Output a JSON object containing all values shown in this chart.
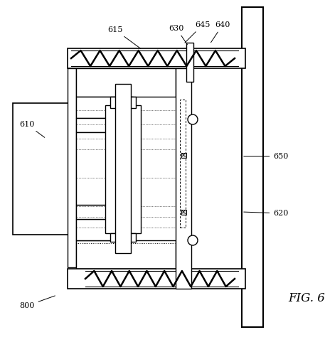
{
  "bg_color": "#ffffff",
  "line_color": "#000000",
  "fig_label": "FIG. 6"
}
